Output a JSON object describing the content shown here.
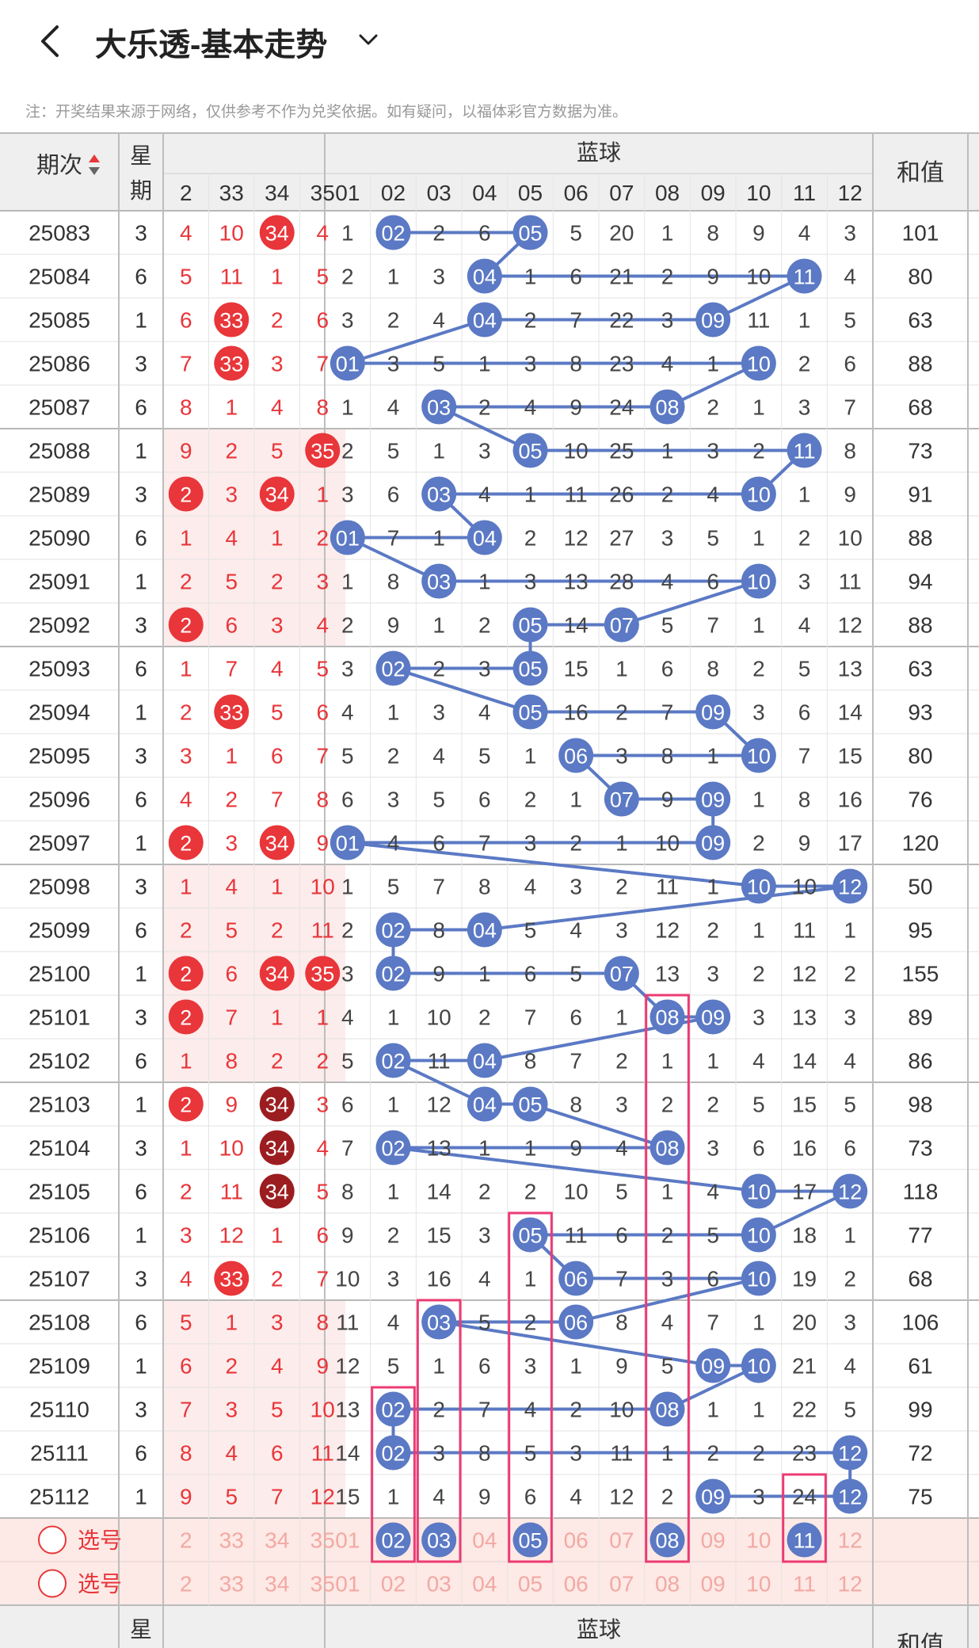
{
  "header": {
    "title": "大乐透-基本走势",
    "note": "注：开奖结果来源于网络，仅供参考不作为兑奖依据。如有疑问，以福体彩官方数据为准。"
  },
  "table": {
    "period_header": "期次",
    "weekday_header": "星期",
    "blue_header": "蓝球",
    "sum_header": "和值",
    "select_label": "选号",
    "red_cols": [
      "2",
      "33",
      "34",
      "35"
    ],
    "blue_cols": [
      "01",
      "02",
      "03",
      "04",
      "05",
      "06",
      "07",
      "08",
      "09",
      "10",
      "11",
      "12"
    ]
  },
  "rows": [
    {
      "p": "25083",
      "w": "3",
      "r": [
        "4",
        "10",
        "34",
        "4"
      ],
      "rh": [
        2
      ],
      "b": [
        "1",
        "02",
        "2",
        "6",
        "05",
        "5",
        "20",
        "1",
        "8",
        "9",
        "4",
        "3"
      ],
      "bh": [
        2,
        5
      ],
      "s": "101"
    },
    {
      "p": "25084",
      "w": "6",
      "r": [
        "5",
        "11",
        "1",
        "5"
      ],
      "rh": [],
      "b": [
        "2",
        "1",
        "3",
        "04",
        "1",
        "6",
        "21",
        "2",
        "9",
        "10",
        "11",
        "4"
      ],
      "bh": [
        4,
        11
      ],
      "s": "80"
    },
    {
      "p": "25085",
      "w": "1",
      "r": [
        "6",
        "33",
        "2",
        "6"
      ],
      "rh": [
        1
      ],
      "b": [
        "3",
        "2",
        "4",
        "04",
        "2",
        "7",
        "22",
        "3",
        "09",
        "11",
        "1",
        "5"
      ],
      "bh": [
        4,
        9
      ],
      "s": "63"
    },
    {
      "p": "25086",
      "w": "3",
      "r": [
        "7",
        "33",
        "3",
        "7"
      ],
      "rh": [
        1
      ],
      "b": [
        "01",
        "3",
        "5",
        "1",
        "3",
        "8",
        "23",
        "4",
        "1",
        "10",
        "2",
        "6"
      ],
      "bh": [
        1,
        10
      ],
      "s": "88"
    },
    {
      "p": "25087",
      "w": "6",
      "r": [
        "8",
        "1",
        "4",
        "8"
      ],
      "rh": [],
      "b": [
        "1",
        "4",
        "03",
        "2",
        "4",
        "9",
        "24",
        "08",
        "2",
        "1",
        "3",
        "7"
      ],
      "bh": [
        3,
        8
      ],
      "s": "68"
    },
    {
      "p": "25088",
      "w": "1",
      "r": [
        "9",
        "2",
        "5",
        "35"
      ],
      "rh": [
        3
      ],
      "b": [
        "2",
        "5",
        "1",
        "3",
        "05",
        "10",
        "25",
        "1",
        "3",
        "2",
        "11",
        "8"
      ],
      "bh": [
        5,
        11
      ],
      "s": "73"
    },
    {
      "p": "25089",
      "w": "3",
      "r": [
        "2",
        "3",
        "34",
        "1"
      ],
      "rh": [
        0,
        2
      ],
      "b": [
        "3",
        "6",
        "03",
        "4",
        "1",
        "11",
        "26",
        "2",
        "4",
        "10",
        "1",
        "9"
      ],
      "bh": [
        3,
        10
      ],
      "s": "91"
    },
    {
      "p": "25090",
      "w": "6",
      "r": [
        "1",
        "4",
        "1",
        "2"
      ],
      "rh": [],
      "b": [
        "01",
        "7",
        "1",
        "04",
        "2",
        "12",
        "27",
        "3",
        "5",
        "1",
        "2",
        "10"
      ],
      "bh": [
        1,
        4
      ],
      "s": "88"
    },
    {
      "p": "25091",
      "w": "1",
      "r": [
        "2",
        "5",
        "2",
        "3"
      ],
      "rh": [],
      "b": [
        "1",
        "8",
        "03",
        "1",
        "3",
        "13",
        "28",
        "4",
        "6",
        "10",
        "3",
        "11"
      ],
      "bh": [
        3,
        10
      ],
      "s": "94"
    },
    {
      "p": "25092",
      "w": "3",
      "r": [
        "2",
        "6",
        "3",
        "4"
      ],
      "rh": [
        0
      ],
      "b": [
        "2",
        "9",
        "1",
        "2",
        "05",
        "14",
        "07",
        "5",
        "7",
        "1",
        "4",
        "12"
      ],
      "bh": [
        5,
        7
      ],
      "s": "88"
    },
    {
      "p": "25093",
      "w": "6",
      "r": [
        "1",
        "7",
        "4",
        "5"
      ],
      "rh": [],
      "b": [
        "3",
        "02",
        "2",
        "3",
        "05",
        "15",
        "1",
        "6",
        "8",
        "2",
        "5",
        "13"
      ],
      "bh": [
        2,
        5
      ],
      "s": "63"
    },
    {
      "p": "25094",
      "w": "1",
      "r": [
        "2",
        "33",
        "5",
        "6"
      ],
      "rh": [
        1
      ],
      "b": [
        "4",
        "1",
        "3",
        "4",
        "05",
        "16",
        "2",
        "7",
        "09",
        "3",
        "6",
        "14"
      ],
      "bh": [
        5,
        9
      ],
      "s": "93"
    },
    {
      "p": "25095",
      "w": "3",
      "r": [
        "3",
        "1",
        "6",
        "7"
      ],
      "rh": [],
      "b": [
        "5",
        "2",
        "4",
        "5",
        "1",
        "06",
        "3",
        "8",
        "1",
        "10",
        "7",
        "15"
      ],
      "bh": [
        6,
        10
      ],
      "s": "80"
    },
    {
      "p": "25096",
      "w": "6",
      "r": [
        "4",
        "2",
        "7",
        "8"
      ],
      "rh": [],
      "b": [
        "6",
        "3",
        "5",
        "6",
        "2",
        "1",
        "07",
        "9",
        "09",
        "1",
        "8",
        "16"
      ],
      "bh": [
        7,
        9
      ],
      "s": "76"
    },
    {
      "p": "25097",
      "w": "1",
      "r": [
        "2",
        "3",
        "34",
        "9"
      ],
      "rh": [
        0,
        2
      ],
      "b": [
        "01",
        "4",
        "6",
        "7",
        "3",
        "2",
        "1",
        "10",
        "09",
        "2",
        "9",
        "17"
      ],
      "bh": [
        1,
        9
      ],
      "s": "120"
    },
    {
      "p": "25098",
      "w": "3",
      "r": [
        "1",
        "4",
        "1",
        "10"
      ],
      "rh": [],
      "b": [
        "1",
        "5",
        "7",
        "8",
        "4",
        "3",
        "2",
        "11",
        "1",
        "10",
        "10",
        "12"
      ],
      "bh": [
        10,
        12
      ],
      "s": "50"
    },
    {
      "p": "25099",
      "w": "6",
      "r": [
        "2",
        "5",
        "2",
        "11"
      ],
      "rh": [],
      "b": [
        "2",
        "02",
        "8",
        "04",
        "5",
        "4",
        "3",
        "12",
        "2",
        "1",
        "11",
        "1"
      ],
      "bh": [
        2,
        4
      ],
      "s": "95"
    },
    {
      "p": "25100",
      "w": "1",
      "r": [
        "2",
        "6",
        "34",
        "35"
      ],
      "rh": [
        0,
        2,
        3
      ],
      "b": [
        "3",
        "02",
        "9",
        "1",
        "6",
        "5",
        "07",
        "13",
        "3",
        "2",
        "12",
        "2"
      ],
      "bh": [
        2,
        7
      ],
      "s": "155"
    },
    {
      "p": "25101",
      "w": "3",
      "r": [
        "2",
        "7",
        "1",
        "1"
      ],
      "rh": [
        0
      ],
      "b": [
        "4",
        "1",
        "10",
        "2",
        "7",
        "6",
        "1",
        "08",
        "09",
        "3",
        "13",
        "3"
      ],
      "bh": [
        8,
        9
      ],
      "s": "89"
    },
    {
      "p": "25102",
      "w": "6",
      "r": [
        "1",
        "8",
        "2",
        "2"
      ],
      "rh": [],
      "b": [
        "5",
        "02",
        "11",
        "04",
        "8",
        "7",
        "2",
        "1",
        "1",
        "4",
        "14",
        "4"
      ],
      "bh": [
        2,
        4
      ],
      "s": "86"
    },
    {
      "p": "25103",
      "w": "1",
      "r": [
        "2",
        "9",
        "34",
        "3"
      ],
      "rh": [
        0,
        2
      ],
      "b": [
        "6",
        "1",
        "12",
        "04",
        "05",
        "8",
        "3",
        "2",
        "2",
        "5",
        "15",
        "5"
      ],
      "bh": [
        4,
        5
      ],
      "s": "98"
    },
    {
      "p": "25104",
      "w": "3",
      "r": [
        "1",
        "10",
        "34",
        "4"
      ],
      "rh": [
        2
      ],
      "b": [
        "7",
        "02",
        "13",
        "1",
        "1",
        "9",
        "4",
        "08",
        "3",
        "6",
        "16",
        "6"
      ],
      "bh": [
        2,
        8
      ],
      "s": "73"
    },
    {
      "p": "25105",
      "w": "6",
      "r": [
        "2",
        "11",
        "34",
        "5"
      ],
      "rh": [
        2
      ],
      "b": [
        "8",
        "1",
        "14",
        "2",
        "2",
        "10",
        "5",
        "1",
        "4",
        "10",
        "17",
        "12"
      ],
      "bh": [
        10,
        12
      ],
      "s": "118"
    },
    {
      "p": "25106",
      "w": "1",
      "r": [
        "3",
        "12",
        "1",
        "6"
      ],
      "rh": [],
      "b": [
        "9",
        "2",
        "15",
        "3",
        "05",
        "11",
        "6",
        "2",
        "5",
        "10",
        "18",
        "1"
      ],
      "bh": [
        5,
        10
      ],
      "s": "77"
    },
    {
      "p": "25107",
      "w": "3",
      "r": [
        "4",
        "33",
        "2",
        "7"
      ],
      "rh": [
        1
      ],
      "b": [
        "10",
        "3",
        "16",
        "4",
        "1",
        "06",
        "7",
        "3",
        "6",
        "10",
        "19",
        "2"
      ],
      "bh": [
        6,
        10
      ],
      "s": "68"
    },
    {
      "p": "25108",
      "w": "6",
      "r": [
        "5",
        "1",
        "3",
        "8"
      ],
      "rh": [],
      "b": [
        "11",
        "4",
        "03",
        "5",
        "2",
        "06",
        "8",
        "4",
        "7",
        "1",
        "20",
        "3"
      ],
      "bh": [
        3,
        6
      ],
      "s": "106"
    },
    {
      "p": "25109",
      "w": "1",
      "r": [
        "6",
        "2",
        "4",
        "9"
      ],
      "rh": [],
      "b": [
        "12",
        "5",
        "1",
        "6",
        "3",
        "1",
        "9",
        "5",
        "09",
        "10",
        "21",
        "4"
      ],
      "bh": [
        9,
        10
      ],
      "s": "61"
    },
    {
      "p": "25110",
      "w": "3",
      "r": [
        "7",
        "3",
        "5",
        "10"
      ],
      "rh": [],
      "b": [
        "13",
        "02",
        "2",
        "7",
        "4",
        "2",
        "10",
        "08",
        "1",
        "1",
        "22",
        "5"
      ],
      "bh": [
        2,
        8
      ],
      "s": "99"
    },
    {
      "p": "25111",
      "w": "6",
      "r": [
        "8",
        "4",
        "6",
        "11"
      ],
      "rh": [],
      "b": [
        "14",
        "02",
        "3",
        "8",
        "5",
        "3",
        "11",
        "1",
        "2",
        "2",
        "23",
        "12"
      ],
      "bh": [
        2,
        12
      ],
      "s": "72"
    },
    {
      "p": "25112",
      "w": "1",
      "r": [
        "9",
        "5",
        "7",
        "12"
      ],
      "rh": [],
      "b": [
        "15",
        "1",
        "4",
        "9",
        "6",
        "4",
        "12",
        "2",
        "09",
        "3",
        "24",
        "12"
      ],
      "bh": [
        9,
        12
      ],
      "s": "75"
    }
  ],
  "select_rows": [
    {
      "label": "选号",
      "r": [
        "2",
        "33",
        "34",
        "35"
      ],
      "b_selected": [
        2,
        3,
        5,
        8,
        11
      ]
    },
    {
      "label": "选号",
      "r": [
        "2",
        "33",
        "34",
        "35"
      ],
      "b_selected": []
    }
  ],
  "colors": {
    "blue_ball": "#5b79c4",
    "red_ball": "#e8363a",
    "dark_red_ball": "#9c1d20",
    "red_text": "#e8363a",
    "pink_box": "#ec3b73",
    "select_bg": "#fde9e5",
    "header_bg": "#efefef",
    "red_stripe": "#fdecec"
  }
}
